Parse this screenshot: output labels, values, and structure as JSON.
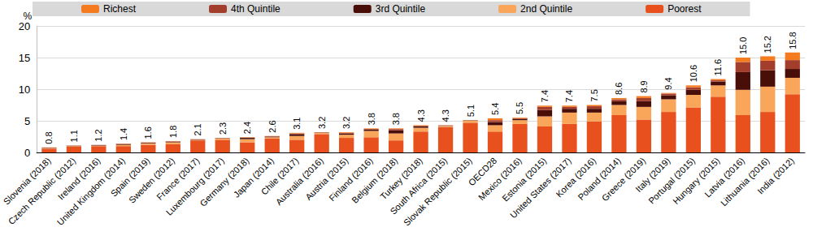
{
  "chart_data": {
    "type": "bar",
    "stacked": true,
    "y_label": "%",
    "categories": [
      "Slovenia (2018)",
      "Czech Republic (2012)",
      "Ireland (2016)",
      "United Kingdom (2014)",
      "Spain (2019)",
      "Sweden (2012)",
      "France (2017)",
      "Luxembourg (2017)",
      "Germany (2018)",
      "Japan (2014)",
      "Chile (2017)",
      "Australia (2016)",
      "Austria (2015)",
      "Finland (2016)",
      "Belgium (2018)",
      "Turkey (2018)",
      "South Africa (2015)",
      "Slovak Republic (2015)",
      "OECD28",
      "Mexico (2016)",
      "Estonia (2015)",
      "United States (2017)",
      "Korea (2016)",
      "Poland (2014)",
      "Greece (2019)",
      "Italy (2019)",
      "Portugal (2015)",
      "Hungary (2015)",
      "Latvia (2016)",
      "Lithuania (2016)",
      "India (2012)"
    ],
    "series": [
      {
        "name": "Poorest",
        "color": "#e8501e",
        "values": [
          0.6,
          0.9,
          1.0,
          1.0,
          1.2,
          1.3,
          1.9,
          2.0,
          1.6,
          2.2,
          2.0,
          2.9,
          2.3,
          2.4,
          1.9,
          3.3,
          4.0,
          4.7,
          3.3,
          4.5,
          4.1,
          4.5,
          4.9,
          5.9,
          5.2,
          6.4,
          7.1,
          8.8,
          5.9,
          6.4,
          9.2
        ]
      },
      {
        "name": "2nd Quintile",
        "color": "#f9a55a",
        "values": [
          0.1,
          0.1,
          0.1,
          0.2,
          0.2,
          0.3,
          0.1,
          0.2,
          0.5,
          0.2,
          0.6,
          0.2,
          0.5,
          1.0,
          1.1,
          0.6,
          0.2,
          0.3,
          1.0,
          0.6,
          1.6,
          1.8,
          1.4,
          1.6,
          2.0,
          2.0,
          2.0,
          1.8,
          4.0,
          4.0,
          2.6
        ]
      },
      {
        "name": "3rd Quintile",
        "color": "#4a0e08",
        "values": [
          0.05,
          0.05,
          0.05,
          0.1,
          0.1,
          0.1,
          0.05,
          0.05,
          0.2,
          0.1,
          0.3,
          0.05,
          0.2,
          0.2,
          0.5,
          0.2,
          0.05,
          0.05,
          0.5,
          0.2,
          1.0,
          0.6,
          0.6,
          0.6,
          0.9,
          0.6,
          0.8,
          0.6,
          2.8,
          2.6,
          1.4
        ]
      },
      {
        "name": "4th Quintile",
        "color": "#a33e2c",
        "values": [
          0.03,
          0.03,
          0.03,
          0.06,
          0.06,
          0.06,
          0.03,
          0.03,
          0.06,
          0.06,
          0.1,
          0.03,
          0.1,
          0.1,
          0.2,
          0.1,
          0.03,
          0.03,
          0.3,
          0.1,
          0.5,
          0.3,
          0.4,
          0.3,
          0.5,
          0.3,
          0.4,
          0.2,
          1.6,
          1.5,
          1.4
        ]
      },
      {
        "name": "Richest",
        "color": "#f47b20",
        "values": [
          0.02,
          0.02,
          0.02,
          0.04,
          0.04,
          0.04,
          0.02,
          0.02,
          0.04,
          0.04,
          0.1,
          0.02,
          0.1,
          0.1,
          0.1,
          0.1,
          0.02,
          0.02,
          0.3,
          0.1,
          0.2,
          0.2,
          0.2,
          0.2,
          0.3,
          0.1,
          0.3,
          0.2,
          0.7,
          0.7,
          1.2
        ]
      }
    ],
    "totals": [
      0.8,
      1.1,
      1.2,
      1.4,
      1.6,
      1.8,
      2.1,
      2.3,
      2.4,
      2.6,
      3.1,
      3.2,
      3.2,
      3.8,
      3.8,
      4.3,
      4.3,
      5.1,
      5.4,
      5.5,
      7.4,
      7.4,
      7.5,
      8.6,
      8.9,
      9.4,
      10.6,
      11.6,
      15.0,
      15.2,
      15.8
    ],
    "total_labels": [
      "0.8",
      "1.1",
      "1.2",
      "1.4",
      "1.6",
      "1.8",
      "2.1",
      "2.3",
      "2.4",
      "2.6",
      "3.1",
      "3.2",
      "3.2",
      "3.8",
      "3.8",
      "4.3",
      "4.3",
      "5.1",
      "5.4",
      "5.5",
      "7.4",
      "7.4",
      "7.5",
      "8.6",
      "8.9",
      "9.4",
      "10.6",
      "11.6",
      "15.0",
      "15.2",
      "15.8"
    ],
    "ylim": [
      0,
      20
    ],
    "yticks": [
      0,
      5,
      10,
      15,
      20
    ],
    "grid": true,
    "legend": "top"
  }
}
